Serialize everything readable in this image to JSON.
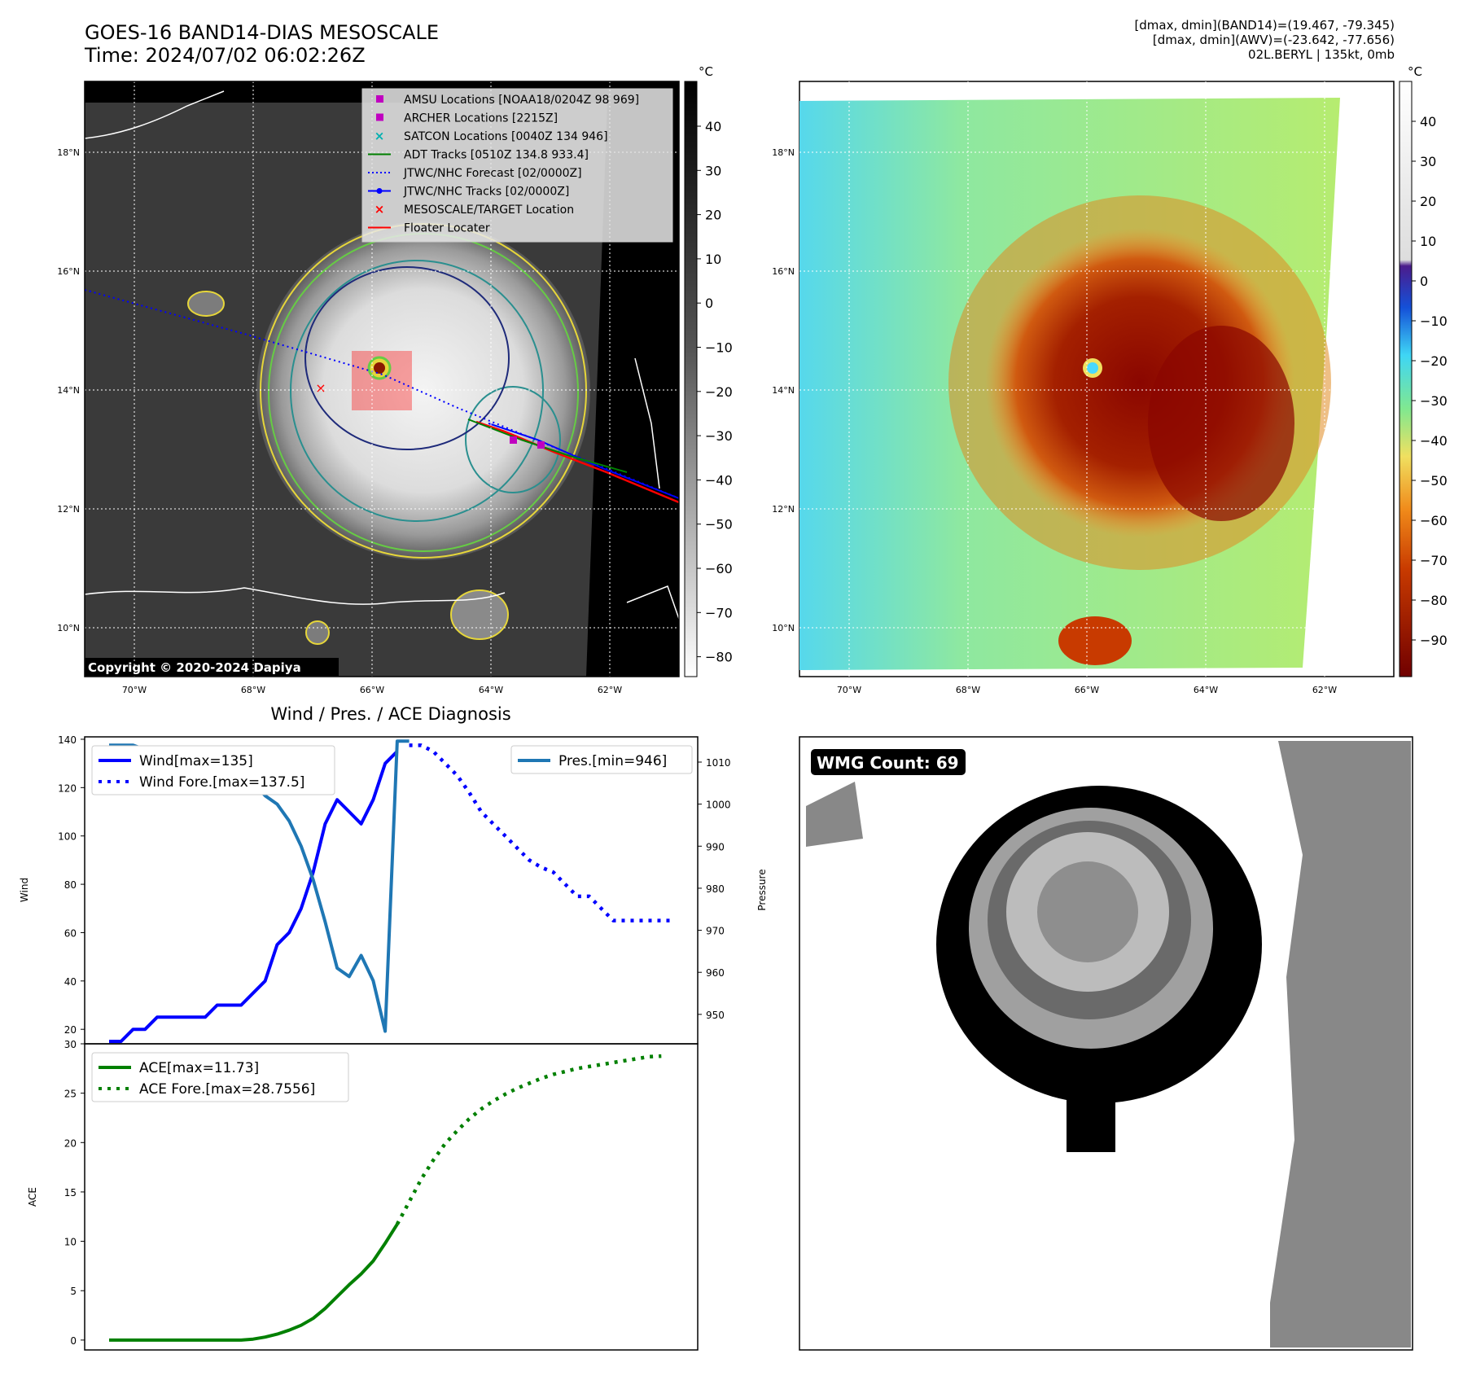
{
  "header": {
    "title_line1": "GOES-16 BAND14-DIAS MESOSCALE",
    "title_line2": "Time: 2024/07/02 06:02:26Z",
    "stats_line1": "[dmax, dmin](BAND14)=(19.467, -79.345)",
    "stats_line2": "[dmax, dmin](AWV)=(-23.642, -77.656)",
    "stats_line3": "02L.BERYL | 135kt, 0mb"
  },
  "map": {
    "lat_ticks": [
      "18°N",
      "16°N",
      "14°N",
      "12°N",
      "10°N"
    ],
    "lon_ticks": [
      "70°W",
      "68°W",
      "66°W",
      "64°W",
      "62°W"
    ],
    "copyright": "Copyright © 2020-2024 Dapiya",
    "colorbar_unit": "°C",
    "colorbar1_ticks": [
      "40",
      "30",
      "20",
      "10",
      "0",
      "−10",
      "−20",
      "−30",
      "−40",
      "−50",
      "−60",
      "−70",
      "−80"
    ],
    "colorbar2_ticks": [
      "40",
      "30",
      "20",
      "10",
      "0",
      "−10",
      "−20",
      "−30",
      "−40",
      "−50",
      "−60",
      "−70",
      "−80",
      "−90"
    ],
    "legend": [
      {
        "label": "AMSU Locations [NOAA18/0204Z 98 969]",
        "color": "#c000c0",
        "marker": "square"
      },
      {
        "label": "ARCHER Locations [2215Z]",
        "color": "#c000c0",
        "marker": "square"
      },
      {
        "label": "SATCON Locations [0040Z 134 946]",
        "color": "#00b0b0",
        "marker": "x"
      },
      {
        "label": "ADT Tracks [0510Z 134.8 933.4]",
        "color": "#008000",
        "marker": "line"
      },
      {
        "label": "JTWC/NHC Forecast [02/0000Z]",
        "color": "#0000ff",
        "marker": "dotted"
      },
      {
        "label": "JTWC/NHC Tracks [02/0000Z]",
        "color": "#0000ff",
        "marker": "line-dot"
      },
      {
        "label": "MESOSCALE/TARGET Location",
        "color": "#ff0000",
        "marker": "x"
      },
      {
        "label": "Floater Locater",
        "color": "#ff0000",
        "marker": "line"
      }
    ],
    "colors": {
      "eye_warm": "#4ad8ff",
      "cold_core": "#7a0000",
      "ring_green": "#66cc44",
      "ring_yellow": "#e6d63a",
      "teal": "#2a8f8f",
      "navy": "#1e2a7a"
    }
  },
  "wmg": {
    "label": "WMG Count: 69"
  },
  "chart_data": [
    {
      "type": "line",
      "title": "Wind / Pres. / ACE Diagnosis",
      "ylabel": "Wind",
      "y2label": "Pressure",
      "ylim": [
        14,
        141
      ],
      "y2lim": [
        943,
        1016
      ],
      "yticks": [
        20,
        40,
        60,
        80,
        100,
        120,
        140
      ],
      "y2ticks": [
        950,
        960,
        970,
        980,
        990,
        1000,
        1010
      ],
      "series": [
        {
          "name": "Wind[max=135]",
          "color": "#0000ff",
          "style": "solid",
          "x": [
            0,
            1,
            2,
            3,
            4,
            5,
            6,
            7,
            8,
            9,
            10,
            11,
            12,
            13,
            14,
            15,
            16,
            17,
            18,
            19,
            20,
            21,
            22,
            23,
            24,
            25,
            26
          ],
          "y": [
            15,
            15,
            20,
            20,
            25,
            25,
            25,
            25,
            25,
            30,
            30,
            30,
            35,
            40,
            55,
            60,
            70,
            85,
            105,
            115,
            110,
            105,
            115,
            130,
            135,
            null,
            null
          ]
        },
        {
          "name": "Wind Fore.[max=137.5]",
          "color": "#0000ff",
          "style": "dotted",
          "x": [
            25,
            26,
            27,
            28,
            29,
            30,
            31,
            32,
            33,
            34,
            35,
            36,
            37,
            38,
            39,
            40,
            41,
            42,
            43,
            44,
            45,
            46,
            47
          ],
          "y": [
            137.5,
            137.5,
            135,
            130,
            125,
            118,
            110,
            105,
            100,
            95,
            90,
            87,
            85,
            80,
            75,
            75,
            70,
            65,
            65,
            65,
            65,
            65,
            65
          ]
        },
        {
          "name": "Pres.[min=946]",
          "color": "#1f77b4",
          "style": "solid",
          "x": [
            0,
            1,
            2,
            3,
            4,
            5,
            6,
            7,
            8,
            9,
            10,
            11,
            12,
            13,
            14,
            15,
            16,
            17,
            18,
            19,
            20,
            21,
            22,
            23,
            24,
            25
          ],
          "y": [
            1014,
            1014,
            1014,
            1013,
            1012,
            1012,
            1012,
            1011,
            1011,
            1010,
            1009,
            1008,
            1005,
            1002,
            1000,
            996,
            990,
            982,
            972,
            961,
            959,
            964,
            958,
            946,
            1015,
            1015
          ]
        }
      ]
    },
    {
      "type": "line",
      "ylabel": "ACE",
      "ylim": [
        -1,
        30
      ],
      "yticks": [
        0,
        5,
        10,
        15,
        20,
        25,
        30
      ],
      "series": [
        {
          "name": "ACE[max=11.73]",
          "color": "#008000",
          "style": "solid",
          "x": [
            0,
            1,
            2,
            3,
            4,
            5,
            6,
            7,
            8,
            9,
            10,
            11,
            12,
            13,
            14,
            15,
            16,
            17,
            18,
            19,
            20,
            21,
            22,
            23,
            24
          ],
          "y": [
            0,
            0,
            0,
            0,
            0,
            0,
            0,
            0,
            0,
            0,
            0,
            0,
            0.1,
            0.3,
            0.6,
            1.0,
            1.5,
            2.2,
            3.2,
            4.4,
            5.6,
            6.7,
            8.0,
            9.8,
            11.73
          ]
        },
        {
          "name": "ACE Fore.[max=28.7556]",
          "color": "#008000",
          "style": "dotted",
          "x": [
            24,
            25,
            26,
            27,
            28,
            29,
            30,
            31,
            32,
            33,
            34,
            35,
            36,
            37,
            38,
            39,
            40,
            41,
            42,
            43,
            44,
            45,
            46
          ],
          "y": [
            11.73,
            14,
            16.3,
            18.2,
            19.9,
            21.2,
            22.4,
            23.4,
            24.2,
            24.9,
            25.5,
            26.0,
            26.5,
            26.9,
            27.2,
            27.5,
            27.7,
            27.9,
            28.1,
            28.3,
            28.5,
            28.7,
            28.7556
          ]
        }
      ]
    }
  ]
}
